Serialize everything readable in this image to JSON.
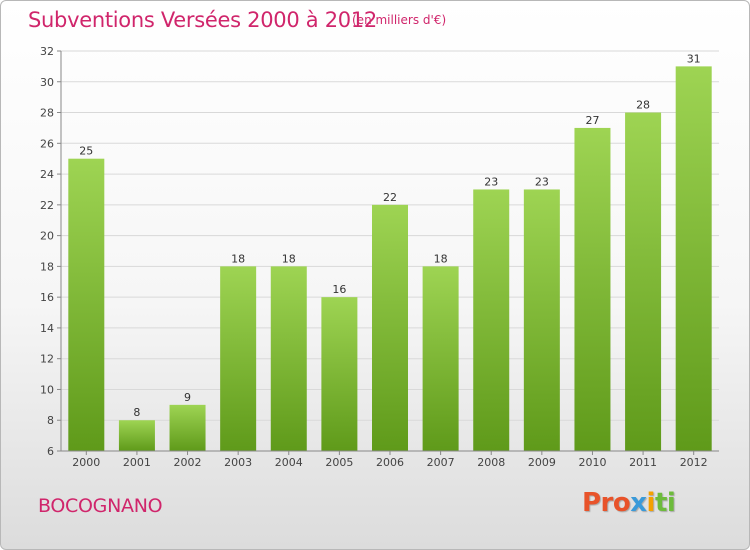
{
  "header": {
    "title": "Subventions Versées 2000 à 2012",
    "subtitle": "(en milliers d'€)"
  },
  "footer": {
    "commune": "BOCOGNANO",
    "brand": "Proxiti"
  },
  "colors": {
    "title": "#d0256b",
    "bar_light": "#9ed453",
    "bar_dark": "#5f9a1a",
    "grid": "#d9d9d9"
  },
  "chart_data": {
    "type": "bar",
    "title": "Subventions Versées 2000 à 2012",
    "subtitle": "(en milliers d'€)",
    "xlabel": "",
    "ylabel": "",
    "categories": [
      "2000",
      "2001",
      "2002",
      "2003",
      "2004",
      "2005",
      "2006",
      "2007",
      "2008",
      "2009",
      "2010",
      "2011",
      "2012"
    ],
    "values": [
      25,
      8,
      9,
      18,
      18,
      16,
      22,
      18,
      23,
      23,
      27,
      28,
      31
    ],
    "ylim": [
      6,
      32
    ],
    "yticks": [
      6,
      8,
      10,
      12,
      14,
      16,
      18,
      20,
      22,
      24,
      26,
      28,
      30,
      32
    ],
    "grid": true,
    "legend": "none"
  }
}
